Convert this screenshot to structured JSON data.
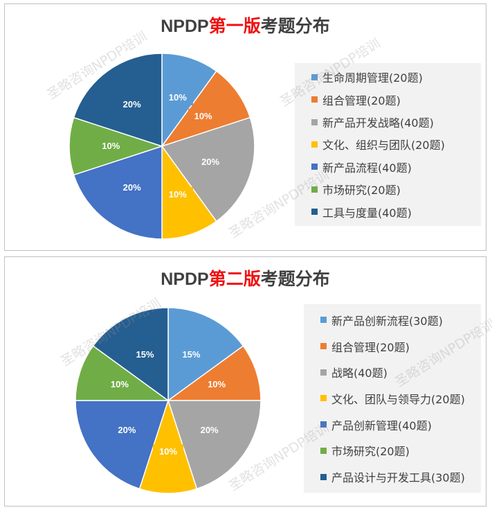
{
  "chart_data": [
    {
      "type": "pie",
      "title_prefix": "NPDP",
      "title_accent": "第一版",
      "title_suffix": "考题分布",
      "slices": [
        {
          "label": "生命周期管理(20题)",
          "value": 10,
          "data_label": "10%",
          "color": "#5b9bd5"
        },
        {
          "label": "组合管理(20题)",
          "value": 10,
          "data_label": "10%",
          "color": "#ed7d31"
        },
        {
          "label": "新产品开发战略(40题)",
          "value": 20,
          "data_label": "20%",
          "color": "#a5a5a5"
        },
        {
          "label": "文化、组织与团队(20题)",
          "value": 10,
          "data_label": "10%",
          "color": "#ffc000"
        },
        {
          "label": "新产品流程(40题)",
          "value": 20,
          "data_label": "20%",
          "color": "#4472c4"
        },
        {
          "label": "市场研究(20题)",
          "value": 10,
          "data_label": "10%",
          "color": "#70ad47"
        },
        {
          "label": "工具与度量(40题)",
          "value": 20,
          "data_label": "20%",
          "color": "#255e91"
        }
      ],
      "legend_position": "right"
    },
    {
      "type": "pie",
      "title_prefix": "NPDP",
      "title_accent": "第二版",
      "title_suffix": "考题分布",
      "slices": [
        {
          "label": "新产品创新流程(30题)",
          "value": 15,
          "data_label": "15%",
          "color": "#5b9bd5"
        },
        {
          "label": "组合管理(20题)",
          "value": 10,
          "data_label": "10%",
          "color": "#ed7d31"
        },
        {
          "label": "战略(40题)",
          "value": 20,
          "data_label": "20%",
          "color": "#a5a5a5"
        },
        {
          "label": "文化、团队与领导力(20题)",
          "value": 10,
          "data_label": "10%",
          "color": "#ffc000"
        },
        {
          "label": "产品创新管理(40题)",
          "value": 20,
          "data_label": "20%",
          "color": "#4472c4"
        },
        {
          "label": "市场研究(20题)",
          "value": 10,
          "data_label": "10%",
          "color": "#70ad47"
        },
        {
          "label": "产品设计与开发工具(30题)",
          "value": 15,
          "data_label": "15%",
          "color": "#255e91"
        }
      ],
      "legend_position": "right"
    }
  ],
  "watermark": "圣略咨询NPDP培训"
}
